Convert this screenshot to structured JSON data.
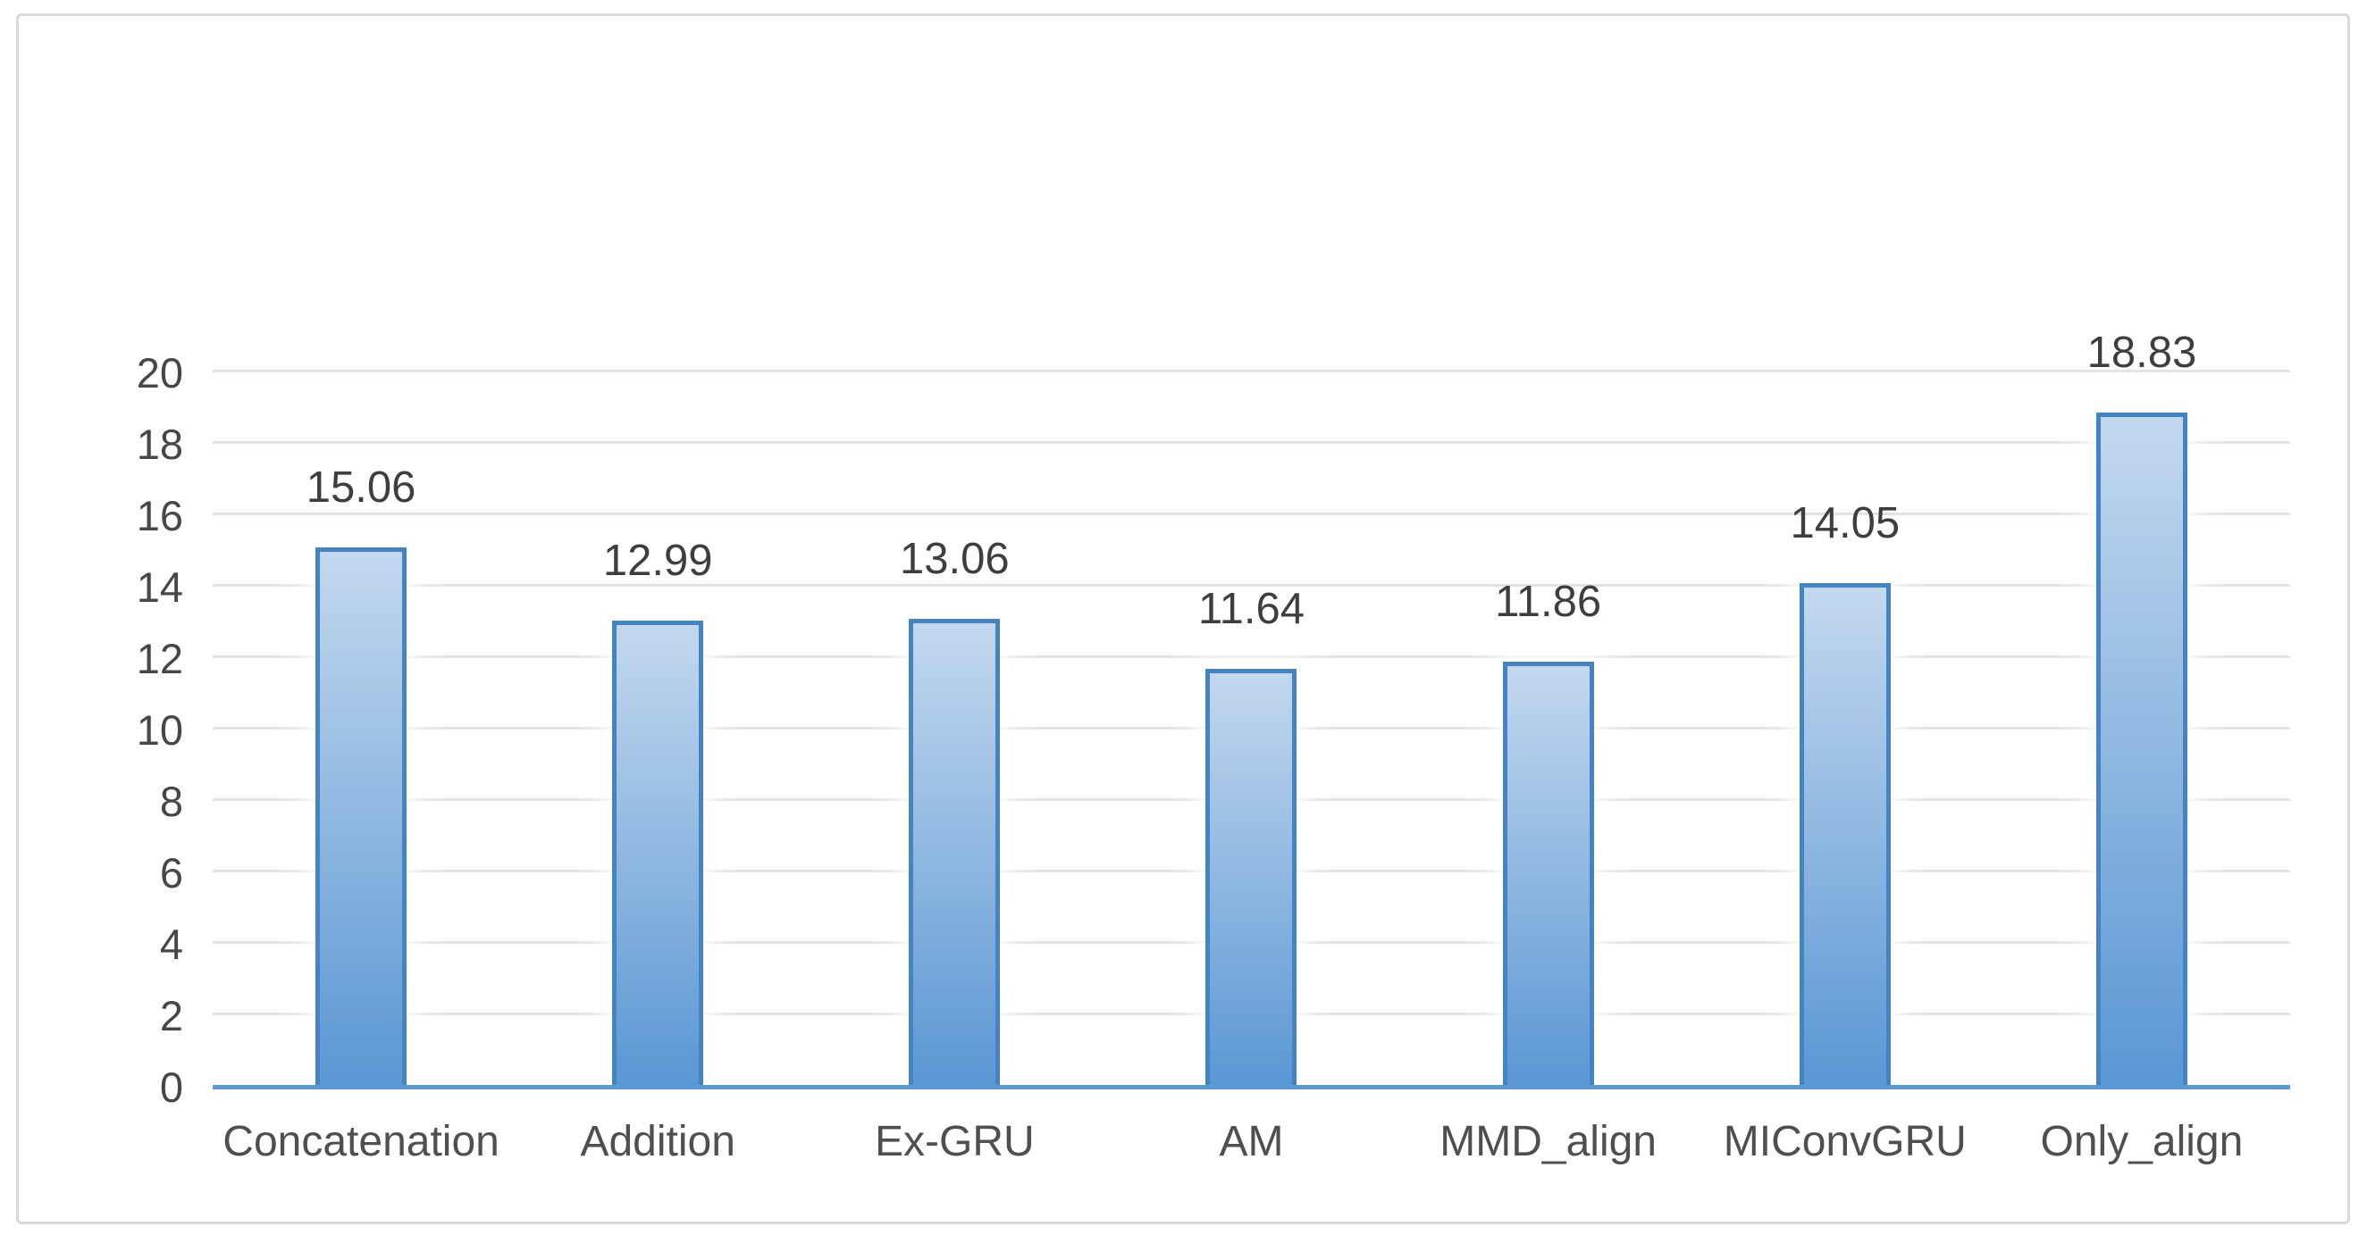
{
  "chart_data": {
    "type": "bar",
    "title": "",
    "xlabel": "",
    "ylabel": "",
    "categories": [
      "Concatenation",
      "Addition",
      "Ex-GRU",
      "AM",
      "MMD_align",
      "MIConvGRU",
      "Only_align"
    ],
    "values": [
      15.06,
      12.99,
      13.06,
      11.64,
      11.86,
      14.05,
      18.83
    ],
    "value_labels": [
      "15.06",
      "12.99",
      "13.06",
      "11.64",
      "11.86",
      "14.05",
      "18.83"
    ],
    "ylim": [
      0,
      20
    ],
    "yticks": [
      0,
      2,
      4,
      6,
      8,
      10,
      12,
      14,
      16,
      18,
      20
    ],
    "ytick_labels": [
      "0",
      "2",
      "4",
      "6",
      "8",
      "10",
      "12",
      "14",
      "16",
      "18",
      "20"
    ],
    "grid": true,
    "legend": "none",
    "colors": {
      "frame_border": "#d9d9d9",
      "gridline": "#e3e3e5",
      "axis_line": "#5b9bd5",
      "bar_fill_top": "#c3d8ee",
      "bar_fill_bottom": "#5b97d4",
      "bar_border": "#4484c4",
      "value_label": "#3e3e3e",
      "tick_label": "#474747",
      "category_label": "#4f4f4f"
    }
  }
}
